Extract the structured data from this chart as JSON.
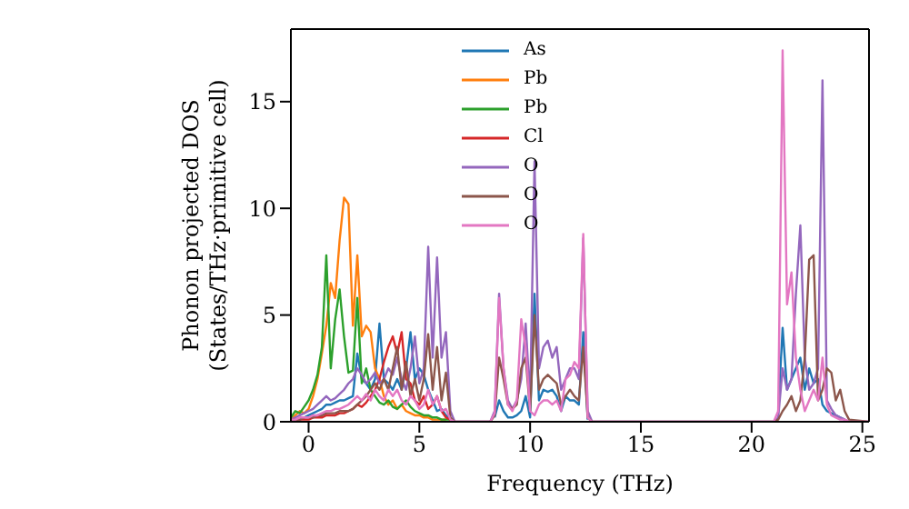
{
  "chart_data": {
    "type": "line",
    "xlabel": "Frequency (THz)",
    "ylabel": "Phonon projected DOS\n(States/THz·primitive cell)",
    "x": [
      -0.8,
      -0.6,
      -0.4,
      -0.2,
      0,
      0.2,
      0.4,
      0.6,
      0.8,
      1.0,
      1.2,
      1.4,
      1.6,
      1.8,
      2.0,
      2.2,
      2.4,
      2.6,
      2.8,
      3.0,
      3.2,
      3.4,
      3.6,
      3.8,
      4.0,
      4.2,
      4.4,
      4.6,
      4.8,
      5.0,
      5.2,
      5.4,
      5.6,
      5.8,
      6.0,
      6.2,
      6.4,
      6.6,
      8.2,
      8.4,
      8.6,
      8.8,
      9.0,
      9.2,
      9.4,
      9.6,
      9.8,
      10.0,
      10.2,
      10.4,
      10.6,
      10.8,
      11.0,
      11.2,
      11.4,
      11.6,
      11.8,
      12.0,
      12.2,
      12.4,
      12.6,
      12.8,
      21.0,
      21.2,
      21.4,
      21.6,
      21.8,
      22.0,
      22.2,
      22.4,
      22.6,
      22.8,
      23.0,
      23.2,
      23.4,
      23.6,
      23.8,
      24.0,
      24.2,
      24.4,
      25.3
    ],
    "series": [
      {
        "name": "As",
        "color": "#1f77b4",
        "values": [
          0.1,
          0.1,
          0.1,
          0.2,
          0.3,
          0.4,
          0.5,
          0.6,
          0.8,
          0.8,
          0.9,
          1.0,
          1.0,
          1.1,
          1.2,
          3.2,
          2.0,
          1.8,
          1.5,
          2.0,
          4.6,
          2.0,
          1.8,
          1.5,
          2.0,
          1.5,
          2.5,
          4.2,
          2.0,
          2.5,
          2.2,
          1.5,
          1.0,
          0.5,
          0.6,
          0.3,
          0.1,
          null,
          null,
          0.2,
          1.0,
          0.5,
          0.2,
          0.2,
          0.3,
          0.5,
          1.2,
          0.2,
          6.0,
          1.0,
          1.5,
          1.4,
          1.5,
          1.2,
          0.5,
          1.2,
          1.0,
          1.0,
          0.8,
          4.2,
          0.1,
          null,
          null,
          0.5,
          4.4,
          1.5,
          2.0,
          2.5,
          3.0,
          1.5,
          2.5,
          1.8,
          2.0,
          0.8,
          0.5,
          0.4,
          0.3,
          0.2,
          0.1,
          null,
          null
        ]
      },
      {
        "name": "Pb",
        "color": "#ff7f0e",
        "values": [
          0.1,
          0.3,
          0.5,
          0.4,
          0.6,
          1.2,
          2.0,
          3.2,
          4.5,
          6.5,
          5.8,
          8.5,
          10.5,
          10.2,
          4.5,
          7.8,
          4.0,
          4.5,
          4.2,
          2.5,
          2.0,
          1.2,
          0.8,
          1.0,
          0.6,
          0.8,
          0.5,
          0.4,
          0.3,
          0.3,
          0.2,
          0.2,
          0.1,
          0.1,
          0.1,
          0.1,
          null,
          null,
          null,
          null,
          null,
          null,
          null,
          null,
          null,
          null,
          null,
          null,
          null,
          null,
          null,
          null,
          null,
          null,
          null,
          null,
          null,
          null,
          null,
          null,
          null,
          null,
          null,
          null,
          null,
          null,
          null,
          null,
          null,
          null,
          null,
          null,
          null,
          null,
          null,
          null,
          null,
          null,
          null,
          null,
          null
        ]
      },
      {
        "name": "Pb",
        "color": "#2ca02c",
        "values": [
          0.2,
          0.5,
          0.4,
          0.7,
          1.0,
          1.5,
          2.2,
          3.5,
          7.8,
          2.5,
          4.8,
          6.2,
          4.0,
          2.3,
          2.4,
          5.8,
          1.8,
          2.5,
          1.5,
          1.2,
          0.9,
          0.8,
          1.0,
          0.7,
          0.6,
          0.8,
          1.0,
          0.7,
          0.5,
          0.4,
          0.3,
          0.3,
          0.2,
          0.2,
          0.1,
          0.1,
          0.1,
          null,
          null,
          null,
          null,
          null,
          null,
          null,
          null,
          null,
          null,
          null,
          null,
          null,
          null,
          null,
          null,
          null,
          null,
          null,
          null,
          null,
          null,
          null,
          null,
          null,
          null,
          null,
          null,
          null,
          null,
          null,
          null,
          null,
          null,
          null,
          null,
          null,
          null,
          null,
          null,
          null,
          null,
          null,
          null
        ]
      },
      {
        "name": "Cl",
        "color": "#d62728",
        "values": [
          0.1,
          0.1,
          0.1,
          0.1,
          0.1,
          0.2,
          0.2,
          0.2,
          0.3,
          0.3,
          0.3,
          0.4,
          0.4,
          0.5,
          0.6,
          0.8,
          0.7,
          0.9,
          1.2,
          1.5,
          2.0,
          2.8,
          3.5,
          4.0,
          3.2,
          4.2,
          2.0,
          1.8,
          1.0,
          0.8,
          1.2,
          0.6,
          0.8,
          1.2,
          0.5,
          0.2,
          0.1,
          null,
          null,
          null,
          null,
          null,
          null,
          null,
          null,
          null,
          null,
          null,
          null,
          null,
          null,
          null,
          null,
          null,
          null,
          null,
          null,
          null,
          null,
          null,
          null,
          null,
          null,
          null,
          null,
          null,
          null,
          null,
          null,
          null,
          null,
          null,
          null,
          null,
          null,
          null,
          null,
          null,
          null,
          null,
          null
        ]
      },
      {
        "name": "O",
        "color": "#9467bd",
        "values": [
          0.1,
          0.2,
          0.3,
          0.4,
          0.5,
          0.6,
          0.8,
          1.0,
          1.2,
          1.0,
          1.1,
          1.3,
          1.5,
          1.8,
          2.0,
          2.5,
          2.2,
          1.8,
          2.0,
          2.3,
          1.8,
          2.0,
          2.5,
          2.2,
          3.0,
          2.0,
          1.5,
          2.5,
          4.0,
          1.8,
          2.5,
          8.2,
          3.0,
          7.7,
          3.0,
          4.2,
          0.5,
          0,
          0,
          0.5,
          6.0,
          2.5,
          1.0,
          0.6,
          1.0,
          2.0,
          4.6,
          1.0,
          12.2,
          2.5,
          3.5,
          3.8,
          3.0,
          3.5,
          1.5,
          2.0,
          2.5,
          2.5,
          2.0,
          8.6,
          0.5,
          0,
          0,
          0.2,
          2.5,
          1.5,
          2.0,
          6.0,
          9.2,
          3.0,
          1.5,
          1.8,
          2.5,
          16.0,
          1.0,
          0.6,
          0.3,
          0.2,
          0.1,
          0,
          0
        ]
      },
      {
        "name": "O",
        "color": "#8c564b",
        "values": [
          0.1,
          0.1,
          0.1,
          0.2,
          0.2,
          0.2,
          0.3,
          0.3,
          0.4,
          0.4,
          0.4,
          0.5,
          0.5,
          0.5,
          0.6,
          0.8,
          1.0,
          1.2,
          1.5,
          1.8,
          1.5,
          2.0,
          1.5,
          2.5,
          3.5,
          1.5,
          2.8,
          1.2,
          2.0,
          1.0,
          2.0,
          4.1,
          1.5,
          3.5,
          1.0,
          2.3,
          0.2,
          0,
          0,
          0.3,
          3.0,
          2.0,
          0.8,
          0.6,
          0.8,
          2.5,
          3.0,
          0.5,
          5.0,
          1.5,
          2.0,
          2.2,
          2.0,
          1.8,
          0.8,
          1.2,
          1.5,
          1.2,
          1.0,
          3.5,
          0.2,
          0,
          0,
          0.1,
          0.5,
          0.8,
          1.2,
          0.5,
          1.0,
          3.0,
          7.6,
          7.8,
          1.0,
          1.5,
          2.5,
          2.3,
          1.0,
          1.5,
          0.5,
          0.1,
          0
        ]
      },
      {
        "name": "O",
        "color": "#e377c2",
        "values": [
          0.1,
          0.1,
          0.2,
          0.2,
          0.2,
          0.3,
          0.3,
          0.4,
          0.5,
          0.5,
          0.6,
          0.6,
          0.7,
          0.8,
          1.0,
          1.2,
          1.0,
          1.3,
          1.0,
          1.5,
          1.2,
          1.0,
          1.5,
          1.2,
          1.5,
          1.0,
          0.8,
          1.2,
          1.0,
          0.6,
          0.8,
          1.5,
          0.8,
          1.2,
          0.5,
          0.6,
          0.1,
          0,
          0,
          0.4,
          5.8,
          2.5,
          0.8,
          0.5,
          1.0,
          4.8,
          3.5,
          0.5,
          0.3,
          0.8,
          1.0,
          1.0,
          0.8,
          1.0,
          0.5,
          2.0,
          2.2,
          2.8,
          2.5,
          8.8,
          0.2,
          0,
          0,
          0.5,
          17.4,
          5.5,
          7.0,
          3.0,
          1.5,
          0.5,
          1.0,
          1.5,
          1.0,
          3.0,
          0.8,
          0.3,
          0.2,
          0.1,
          0.1,
          0,
          0
        ]
      }
    ],
    "xlim": [
      -0.8,
      25.3
    ],
    "xticks": [
      0,
      5,
      10,
      15,
      20,
      25
    ],
    "ylim": [
      0,
      18.4
    ],
    "yticks": [
      0,
      5,
      10,
      15
    ],
    "grid": false,
    "legend": "top",
    "marker": "none",
    "line_style": "solid"
  }
}
